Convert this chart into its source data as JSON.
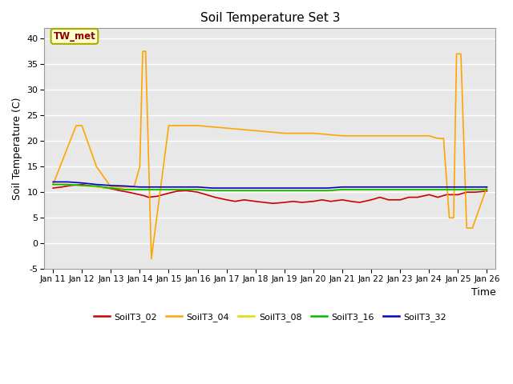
{
  "title": "Soil Temperature Set 3",
  "xlabel": "Time",
  "ylabel": "Soil Temperature (C)",
  "ylim": [
    -5,
    42
  ],
  "yticks": [
    -5,
    0,
    5,
    10,
    15,
    20,
    25,
    30,
    35,
    40
  ],
  "xtick_labels": [
    "Jan 11",
    "Jan 12",
    "Jan 13",
    "Jan 14",
    "Jan 15",
    "Jan 16",
    "Jan 17",
    "Jan 18",
    "Jan 19",
    "Jan 20",
    "Jan 21",
    "Jan 22",
    "Jan 23",
    "Jan 24",
    "Jan 25",
    "Jan 26"
  ],
  "annotation_text": "TW_met",
  "annotation_color": "#8B0000",
  "annotation_bg": "#FFFFCC",
  "annotation_border": "#AAAA00",
  "background_color": "#E8E8E8",
  "plot_bg": "#F0F0F0",
  "grid_color": "white",
  "series": {
    "SoilT3_02": {
      "color": "#CC0000",
      "data_x": [
        0,
        0.3,
        0.6,
        1.0,
        1.3,
        1.6,
        2.0,
        2.3,
        2.6,
        3.0,
        3.15,
        3.3,
        3.6,
        4.0,
        4.3,
        4.6,
        5.0,
        5.3,
        5.6,
        6.0,
        6.3,
        6.6,
        7.0,
        7.3,
        7.6,
        8.0,
        8.3,
        8.6,
        9.0,
        9.3,
        9.6,
        10.0,
        10.3,
        10.6,
        11.0,
        11.3,
        11.6,
        12.0,
        12.3,
        12.6,
        13.0,
        13.3,
        13.6,
        14.0,
        14.3,
        14.6,
        15.0
      ],
      "data_y": [
        10.8,
        11.0,
        11.3,
        11.5,
        11.2,
        11.0,
        10.7,
        10.3,
        10.0,
        9.5,
        9.3,
        9.0,
        9.2,
        9.8,
        10.2,
        10.3,
        10.0,
        9.5,
        9.0,
        8.5,
        8.2,
        8.5,
        8.2,
        8.0,
        7.8,
        8.0,
        8.2,
        8.0,
        8.2,
        8.5,
        8.2,
        8.5,
        8.2,
        8.0,
        8.5,
        9.0,
        8.5,
        8.5,
        9.0,
        9.0,
        9.5,
        9.0,
        9.5,
        9.5,
        10.0,
        10.0,
        10.2
      ]
    },
    "SoilT3_04": {
      "color": "#FFA500",
      "data_x": [
        0,
        0.8,
        1.0,
        1.5,
        2.0,
        2.8,
        3.0,
        3.1,
        3.2,
        3.4,
        4.0,
        4.5,
        5.0,
        6.0,
        7.0,
        8.0,
        9.0,
        10.0,
        11.0,
        12.0,
        13.0,
        13.3,
        13.5,
        13.7,
        13.85,
        13.95,
        14.1,
        14.3,
        14.5,
        15.0
      ],
      "data_y": [
        11.5,
        23.0,
        23.0,
        15.0,
        11.0,
        11.0,
        15.0,
        37.5,
        37.5,
        -3.0,
        23.0,
        23.0,
        23.0,
        22.5,
        22.0,
        21.5,
        21.5,
        21.0,
        21.0,
        21.0,
        21.0,
        20.5,
        20.5,
        5.0,
        5.0,
        37.0,
        37.0,
        3.0,
        3.0,
        11.0
      ]
    },
    "SoilT3_08": {
      "color": "#DDDD00",
      "data_x": [
        0,
        0.5,
        1.0,
        1.5,
        2.0,
        2.5,
        3.0,
        3.5,
        4.0,
        4.5,
        5.0,
        5.5,
        6.0,
        6.5,
        7.0,
        7.5,
        8.0,
        8.5,
        9.0,
        9.5,
        10.0,
        10.5,
        11.0,
        11.5,
        12.0,
        12.5,
        13.0,
        13.5,
        14.0,
        14.5,
        15.0
      ],
      "data_y": [
        11.5,
        11.5,
        11.3,
        11.0,
        10.8,
        10.5,
        10.5,
        10.5,
        10.5,
        10.5,
        10.5,
        10.3,
        10.3,
        10.3,
        10.3,
        10.3,
        10.3,
        10.3,
        10.3,
        10.3,
        10.5,
        10.5,
        10.5,
        10.5,
        10.5,
        10.5,
        10.5,
        10.5,
        10.5,
        10.5,
        10.5
      ]
    },
    "SoilT3_16": {
      "color": "#00BB00",
      "data_x": [
        0,
        0.5,
        1.0,
        1.5,
        2.0,
        2.5,
        3.0,
        3.5,
        4.0,
        4.5,
        5.0,
        5.5,
        6.0,
        6.5,
        7.0,
        7.5,
        8.0,
        8.5,
        9.0,
        9.5,
        10.0,
        10.5,
        11.0,
        11.5,
        12.0,
        12.5,
        13.0,
        13.5,
        14.0,
        14.5,
        15.0
      ],
      "data_y": [
        11.5,
        11.5,
        11.3,
        11.2,
        10.8,
        10.5,
        10.5,
        10.5,
        10.5,
        10.5,
        10.5,
        10.3,
        10.3,
        10.3,
        10.3,
        10.3,
        10.3,
        10.3,
        10.3,
        10.3,
        10.5,
        10.5,
        10.5,
        10.5,
        10.5,
        10.5,
        10.5,
        10.5,
        10.5,
        10.5,
        10.5
      ]
    },
    "SoilT3_32": {
      "color": "#0000CC",
      "data_x": [
        0,
        0.5,
        1.0,
        1.5,
        2.0,
        2.5,
        3.0,
        3.5,
        4.0,
        4.5,
        5.0,
        5.5,
        6.0,
        6.5,
        7.0,
        7.5,
        8.0,
        8.5,
        9.0,
        9.5,
        10.0,
        10.5,
        11.0,
        11.5,
        12.0,
        12.5,
        13.0,
        13.5,
        14.0,
        14.5,
        15.0
      ],
      "data_y": [
        12.0,
        12.0,
        11.8,
        11.5,
        11.3,
        11.2,
        11.0,
        11.0,
        11.0,
        11.0,
        11.0,
        10.8,
        10.8,
        10.8,
        10.8,
        10.8,
        10.8,
        10.8,
        10.8,
        10.8,
        11.0,
        11.0,
        11.0,
        11.0,
        11.0,
        11.0,
        11.0,
        11.0,
        11.0,
        11.0,
        11.0
      ]
    }
  },
  "legend_order": [
    "SoilT3_02",
    "SoilT3_04",
    "SoilT3_08",
    "SoilT3_16",
    "SoilT3_32"
  ]
}
